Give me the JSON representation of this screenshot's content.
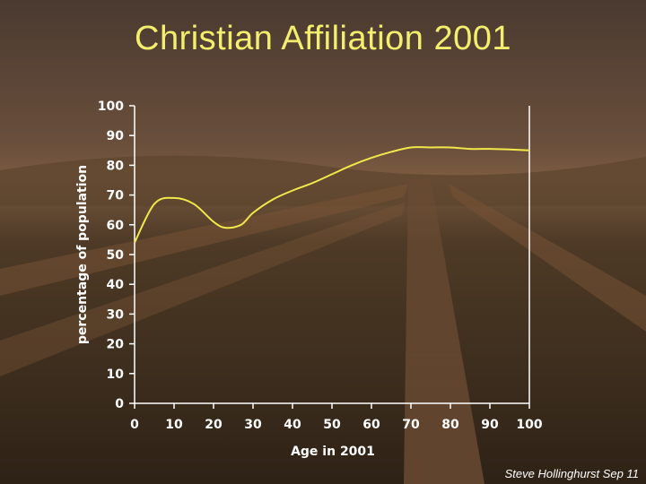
{
  "page": {
    "title": "Christian Affiliation 2001",
    "credit": "Steve Hollinghurst Sep 11"
  },
  "colors": {
    "title": "#f4ee6e",
    "line": "#f2e84a",
    "axis": "#ffffff"
  },
  "chart_data": {
    "type": "line",
    "title": "",
    "xlabel": "Age in 2001",
    "ylabel": "percentage of population",
    "xlim": [
      0,
      100
    ],
    "ylim": [
      0,
      100
    ],
    "xticks": [
      0,
      10,
      20,
      30,
      40,
      50,
      60,
      70,
      80,
      90,
      100
    ],
    "yticks": [
      0,
      10,
      20,
      30,
      40,
      50,
      60,
      70,
      80,
      90,
      100
    ],
    "grid": false,
    "series": [
      {
        "x": [
          0,
          5,
          10,
          15,
          20,
          23,
          27,
          30,
          35,
          40,
          45,
          50,
          55,
          60,
          65,
          70,
          75,
          80,
          85,
          90,
          95,
          100
        ],
        "values": [
          54,
          67,
          69,
          67,
          61,
          59,
          60,
          64,
          68.5,
          71.5,
          74,
          77,
          80,
          82.5,
          84.5,
          86,
          86,
          86,
          85.5,
          85.5,
          85.3,
          85
        ]
      }
    ]
  }
}
